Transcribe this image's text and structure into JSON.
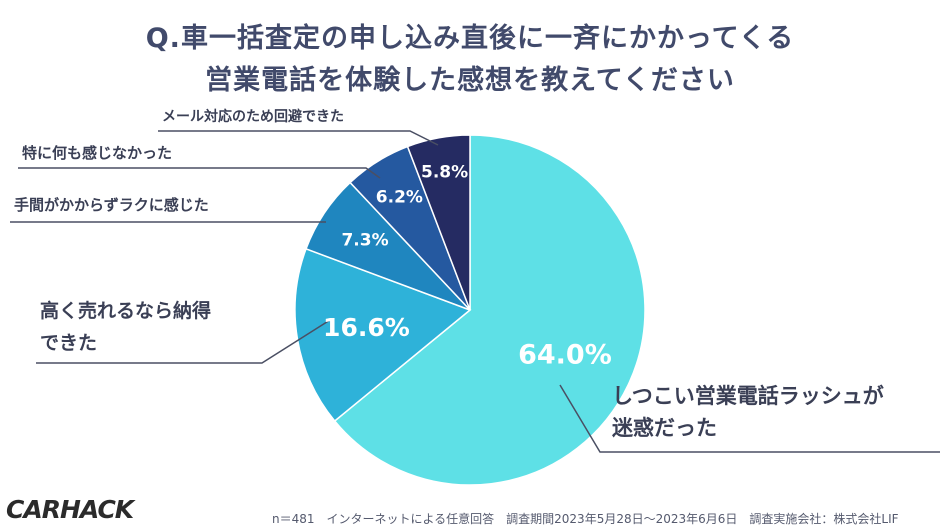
{
  "header": {
    "title_line1": "Q.車一括査定の申し込み直後に一斉にかかってくる",
    "title_line2": "営業電話を体験した感想を教えてください"
  },
  "chart_data": {
    "type": "pie",
    "title": "Q.車一括査定の申し込み直後に一斉にかかってくる営業電話を体験した感想を教えてください",
    "slices": [
      {
        "label": "しつこい営業電話ラッシュが迷惑だった",
        "label_lines": [
          "しつこい営業電話ラッシュが",
          "迷惑だった"
        ],
        "value": 64.0,
        "display": "64.0%",
        "color": "#5ee0e6"
      },
      {
        "label": "高く売れるなら納得できた",
        "label_lines": [
          "高く売れるなら納得",
          "できた"
        ],
        "value": 16.6,
        "display": "16.6%",
        "color": "#2eb2d9"
      },
      {
        "label": "手間がかからずラクに感じた",
        "label_lines": [
          "手間がかからずラクに感じた"
        ],
        "value": 7.3,
        "display": "7.3%",
        "color": "#1f86bf"
      },
      {
        "label": "特に何も感じなかった",
        "label_lines": [
          "特に何も感じなかった"
        ],
        "value": 6.2,
        "display": "6.2%",
        "color": "#2559a0"
      },
      {
        "label": "メール対応のため回避できた",
        "label_lines": [
          "メール対応のため回避できた"
        ],
        "value": 5.8,
        "display": "5.8%",
        "color": "#252b62"
      }
    ]
  },
  "footer": {
    "note": "n＝481　インターネットによる任意回答　調査期間2023年5月28日〜2023年6月6日　調査実施会社：株式会社LIF",
    "logo": "CARHACK"
  }
}
